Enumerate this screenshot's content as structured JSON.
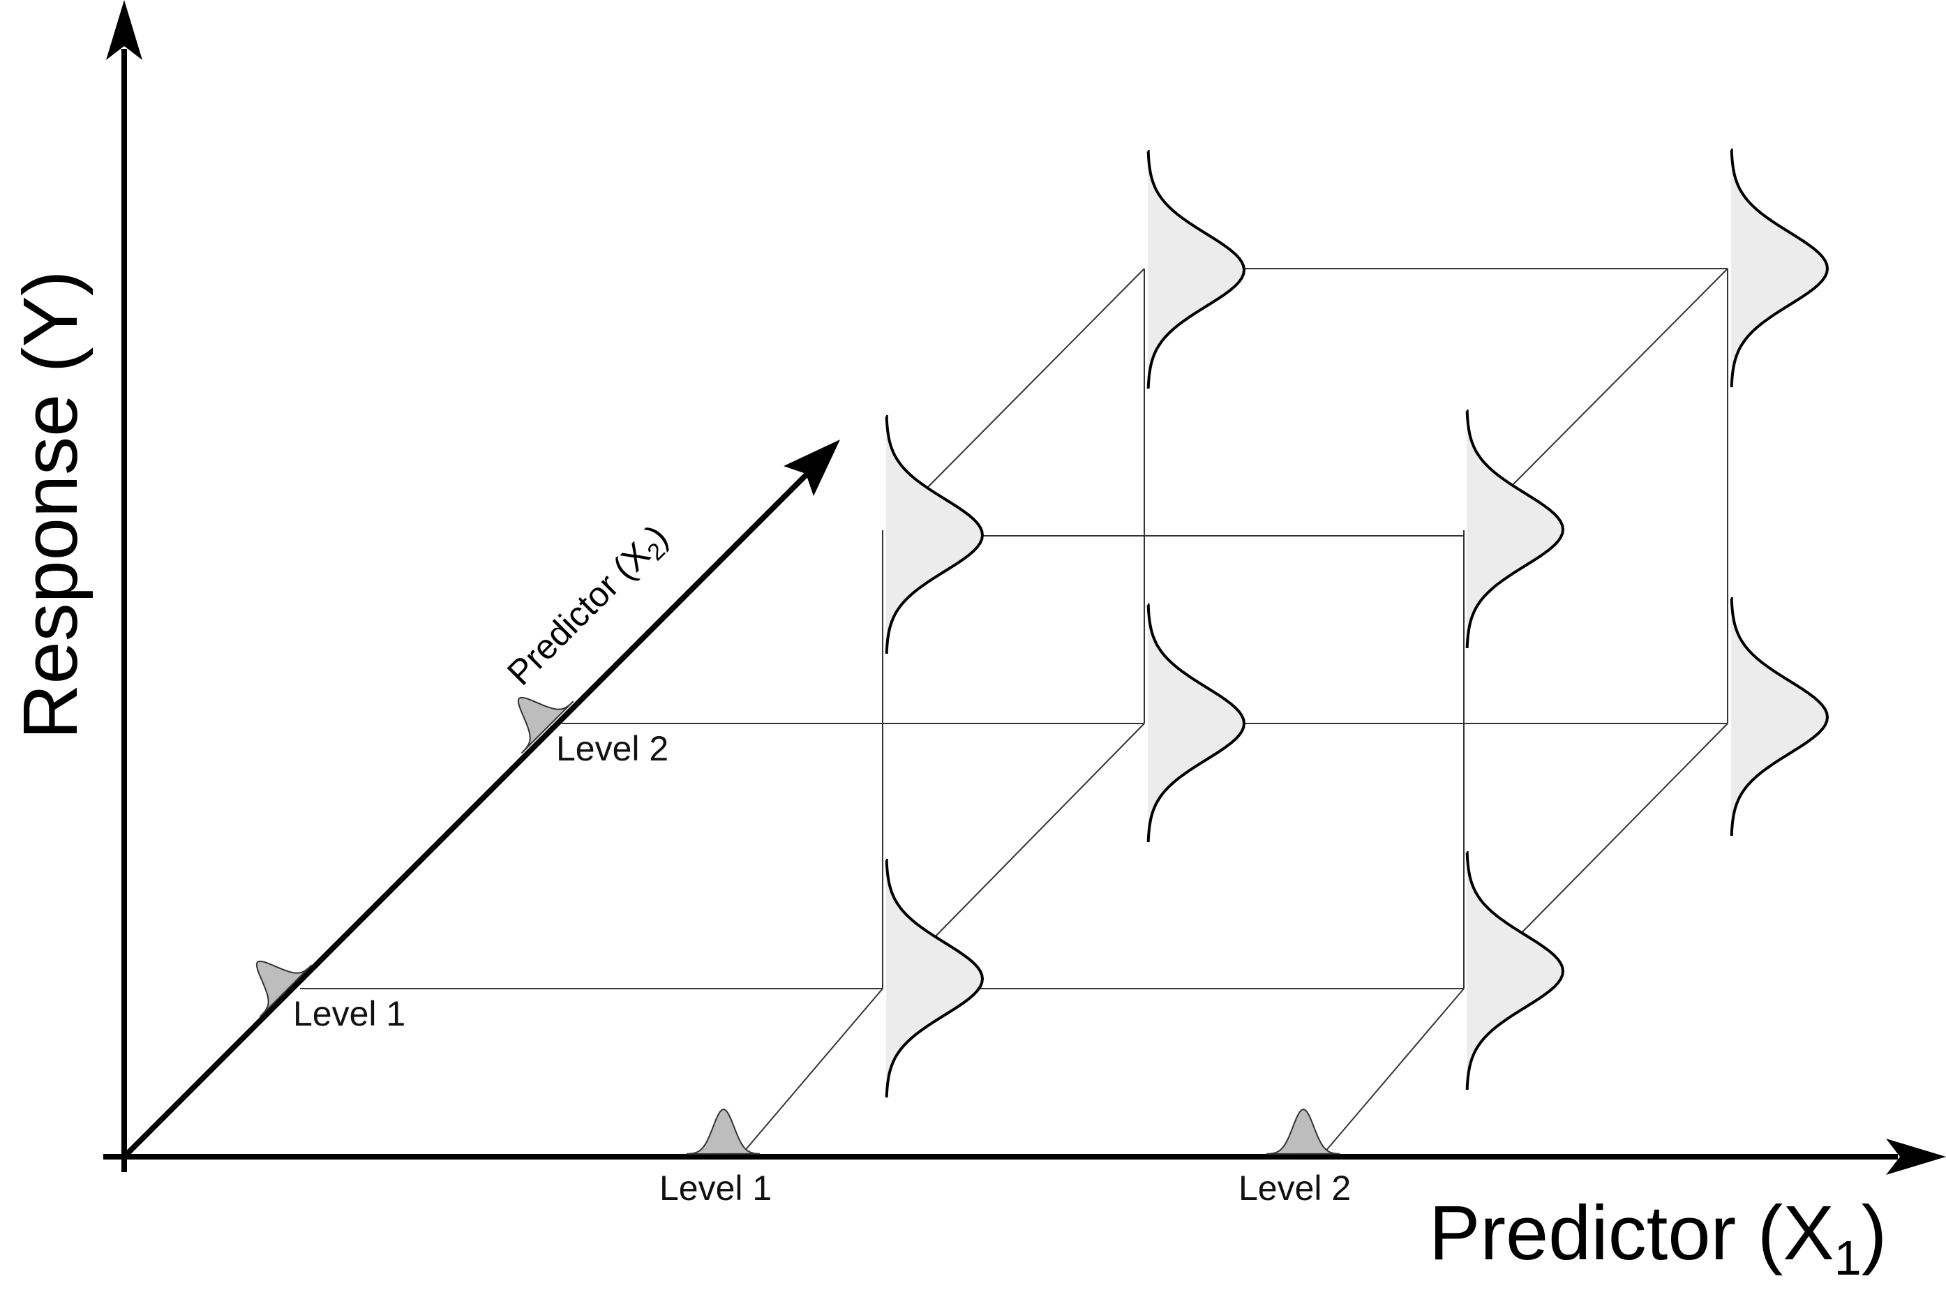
{
  "axes": {
    "y_title": "Response (Y)",
    "x1_title_main": "Predictor (X",
    "x1_subscript": "1",
    "x1_close": ")",
    "x2_title_main": "Predictor (X",
    "x2_subscript": "2",
    "x2_close": ")"
  },
  "x1_levels": [
    "Level 1",
    "Level 2"
  ],
  "x2_levels": [
    "Level 1",
    "Level 2"
  ],
  "colors": {
    "line": "#000000",
    "grid_line": "#333333",
    "curve_fill": "#ececec",
    "marker_fill": "#bdbdbd"
  }
}
